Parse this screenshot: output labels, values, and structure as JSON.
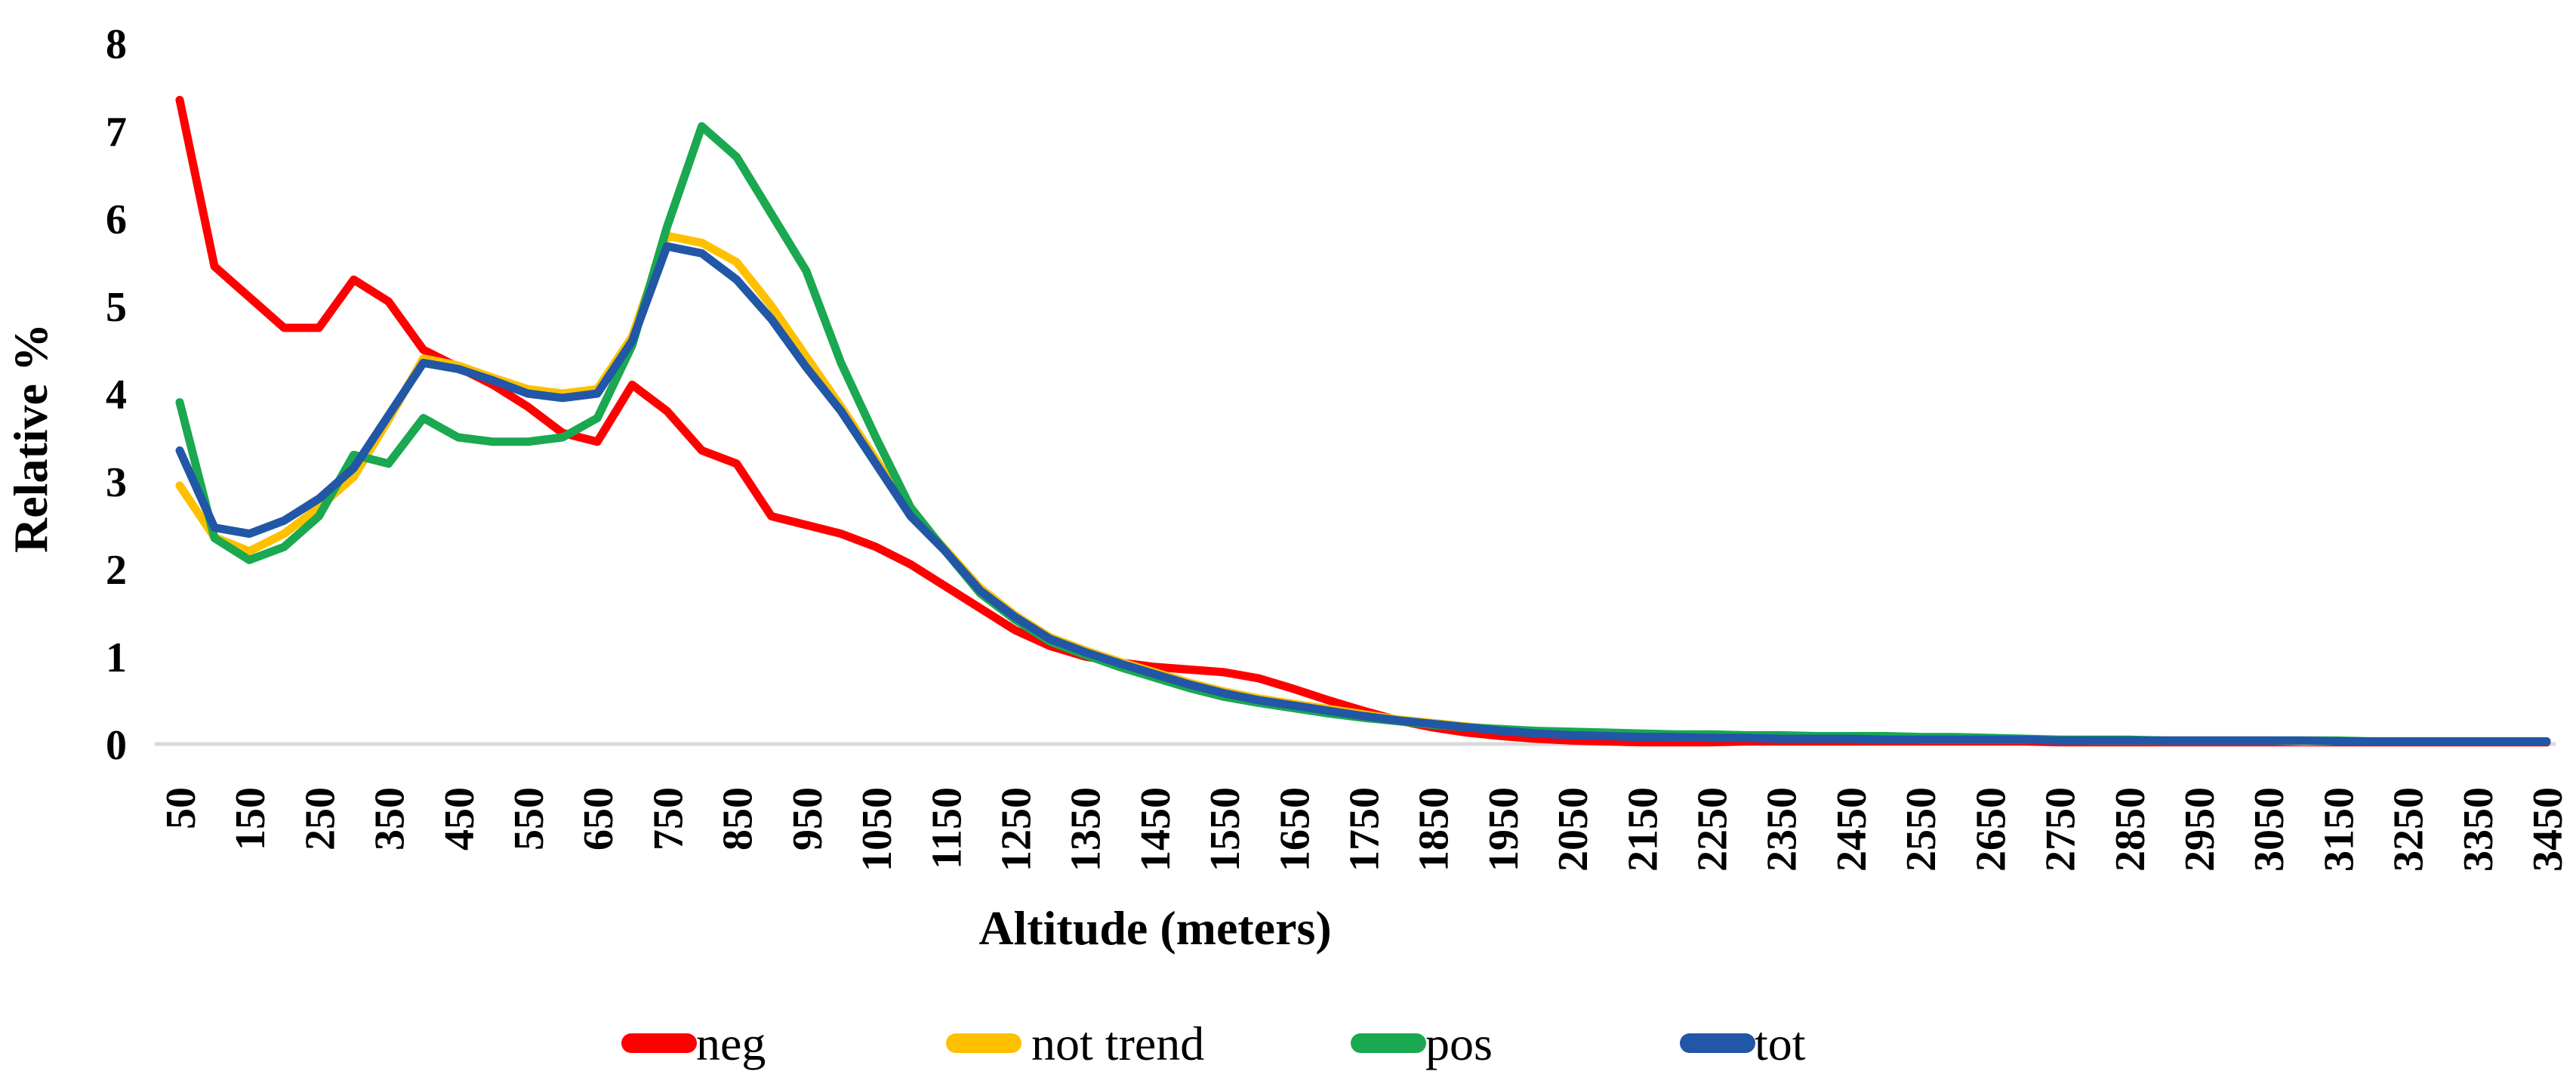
{
  "chart_data": {
    "type": "line",
    "title": "",
    "xlabel": "Altitude (meters)",
    "ylabel": "Relative %",
    "ylim": [
      0,
      8
    ],
    "yticks": [
      0,
      1,
      2,
      3,
      4,
      5,
      6,
      7,
      8
    ],
    "xticks": [
      50,
      150,
      250,
      350,
      450,
      550,
      650,
      750,
      850,
      950,
      1050,
      1150,
      1250,
      1350,
      1450,
      1550,
      1650,
      1750,
      1850,
      1950,
      2050,
      2150,
      2250,
      2350,
      2450,
      2550,
      2650,
      2750,
      2850,
      2950,
      3050,
      3150,
      3250,
      3350,
      3450
    ],
    "x": [
      50,
      100,
      150,
      200,
      250,
      300,
      350,
      400,
      450,
      500,
      550,
      600,
      650,
      700,
      750,
      800,
      850,
      900,
      950,
      1000,
      1050,
      1100,
      1150,
      1200,
      1250,
      1300,
      1350,
      1400,
      1450,
      1500,
      1550,
      1600,
      1650,
      1700,
      1750,
      1800,
      1850,
      1900,
      1950,
      2000,
      2050,
      2100,
      2150,
      2200,
      2250,
      2300,
      2350,
      2400,
      2450,
      2500,
      2550,
      2600,
      2650,
      2700,
      2750,
      2800,
      2850,
      2900,
      2950,
      3000,
      3050,
      3100,
      3150,
      3200,
      3250,
      3300,
      3350,
      3400,
      3450
    ],
    "series": [
      {
        "name": "neg",
        "color": "#ff0000",
        "values": [
          7.35,
          5.45,
          5.1,
          4.75,
          4.75,
          5.3,
          5.05,
          4.5,
          4.3,
          4.1,
          3.85,
          3.55,
          3.45,
          4.1,
          3.8,
          3.35,
          3.2,
          2.6,
          2.5,
          2.4,
          2.25,
          2.05,
          1.8,
          1.55,
          1.3,
          1.12,
          1.0,
          0.93,
          0.88,
          0.85,
          0.82,
          0.75,
          0.63,
          0.5,
          0.38,
          0.27,
          0.19,
          0.13,
          0.09,
          0.06,
          0.04,
          0.03,
          0.02,
          0.02,
          0.02,
          0.03,
          0.03,
          0.03,
          0.03,
          0.03,
          0.03,
          0.03,
          0.03,
          0.03,
          0.02,
          0.02,
          0.02,
          0.02,
          0.02,
          0.02,
          0.02,
          0.02,
          0.02,
          0.02,
          0.02,
          0.02,
          0.02,
          0.02,
          0.02
        ]
      },
      {
        "name": "not trend",
        "color": "#ffc000",
        "values": [
          2.95,
          2.36,
          2.2,
          2.4,
          2.7,
          3.05,
          3.7,
          4.4,
          4.32,
          4.18,
          4.05,
          4.0,
          4.05,
          4.65,
          5.8,
          5.72,
          5.5,
          5.0,
          4.42,
          3.85,
          3.25,
          2.65,
          2.22,
          1.78,
          1.47,
          1.22,
          1.07,
          0.94,
          0.82,
          0.7,
          0.6,
          0.52,
          0.46,
          0.4,
          0.34,
          0.28,
          0.24,
          0.2,
          0.16,
          0.13,
          0.11,
          0.1,
          0.09,
          0.08,
          0.08,
          0.07,
          0.07,
          0.06,
          0.06,
          0.06,
          0.05,
          0.05,
          0.05,
          0.05,
          0.05,
          0.04,
          0.04,
          0.04,
          0.04,
          0.04,
          0.04,
          0.03,
          0.03,
          0.03,
          0.03,
          0.03,
          0.03,
          0.03,
          0.03
        ]
      },
      {
        "name": "pos",
        "color": "#1aa850",
        "values": [
          3.9,
          2.35,
          2.1,
          2.25,
          2.6,
          3.3,
          3.2,
          3.72,
          3.5,
          3.45,
          3.45,
          3.5,
          3.72,
          4.55,
          5.9,
          7.05,
          6.7,
          6.05,
          5.4,
          4.35,
          3.5,
          2.7,
          2.2,
          1.72,
          1.42,
          1.17,
          1.02,
          0.88,
          0.76,
          0.64,
          0.54,
          0.47,
          0.41,
          0.35,
          0.3,
          0.26,
          0.22,
          0.19,
          0.17,
          0.15,
          0.14,
          0.13,
          0.12,
          0.11,
          0.11,
          0.1,
          0.1,
          0.09,
          0.09,
          0.09,
          0.08,
          0.08,
          0.07,
          0.06,
          0.05,
          0.05,
          0.05,
          0.04,
          0.04,
          0.04,
          0.04,
          0.04,
          0.04,
          0.03,
          0.03,
          0.03,
          0.03,
          0.03,
          0.03
        ]
      },
      {
        "name": "tot",
        "color": "#2157a6",
        "values": [
          3.35,
          2.47,
          2.4,
          2.55,
          2.8,
          3.15,
          3.75,
          4.35,
          4.28,
          4.15,
          4.0,
          3.95,
          4.0,
          4.6,
          5.68,
          5.6,
          5.3,
          4.85,
          4.3,
          3.8,
          3.2,
          2.6,
          2.2,
          1.75,
          1.45,
          1.2,
          1.05,
          0.92,
          0.8,
          0.68,
          0.58,
          0.5,
          0.44,
          0.38,
          0.32,
          0.27,
          0.23,
          0.19,
          0.15,
          0.12,
          0.1,
          0.09,
          0.08,
          0.08,
          0.07,
          0.07,
          0.06,
          0.06,
          0.06,
          0.05,
          0.05,
          0.05,
          0.05,
          0.05,
          0.04,
          0.04,
          0.04,
          0.04,
          0.04,
          0.04,
          0.04,
          0.04,
          0.03,
          0.03,
          0.03,
          0.03,
          0.03,
          0.03,
          0.03
        ]
      }
    ],
    "legend_position": "bottom",
    "grid": false,
    "axis_line_color": "#d9d9d9",
    "text_color": "#000000"
  }
}
